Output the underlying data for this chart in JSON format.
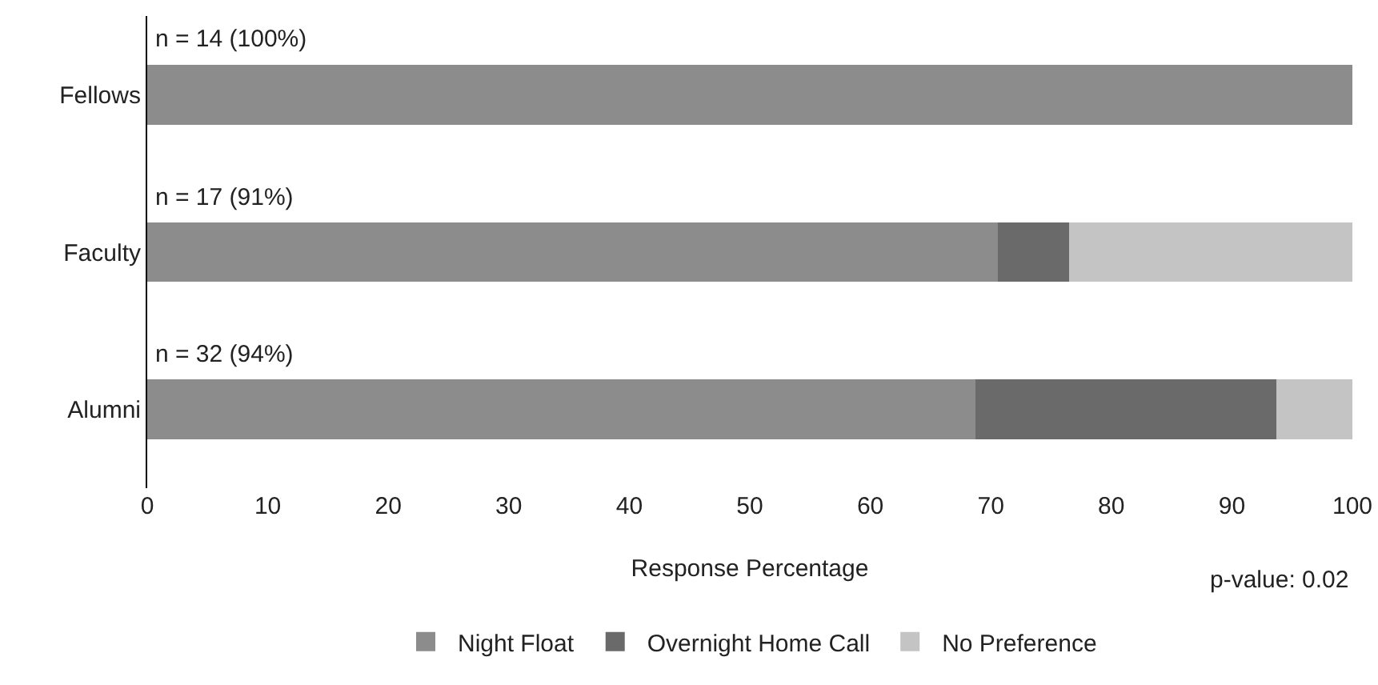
{
  "chart_data": {
    "type": "bar",
    "orientation": "horizontal",
    "stacked": true,
    "xlabel": "Response Percentage",
    "categories": [
      "Fellows",
      "Faculty",
      "Alumni"
    ],
    "series": [
      {
        "name": "Night Float",
        "color": "#8c8c8c",
        "values": [
          100,
          70.6,
          68.7
        ]
      },
      {
        "name": "Overnight Home Call",
        "color": "#6a6a6a",
        "values": [
          0,
          5.9,
          25
        ]
      },
      {
        "name": "No Preference",
        "color": "#c4c4c4",
        "values": [
          0,
          23.5,
          6.3
        ]
      }
    ],
    "xlim": [
      0,
      100
    ],
    "xticks": [
      0,
      10,
      20,
      30,
      40,
      50,
      60,
      70,
      80,
      90,
      100
    ],
    "grid": false,
    "legend": "bottom",
    "annotations": [
      "n = 14 (100%)",
      "n = 17 (91%)",
      "n = 32 (94%)",
      "p-value: 0.02"
    ]
  }
}
